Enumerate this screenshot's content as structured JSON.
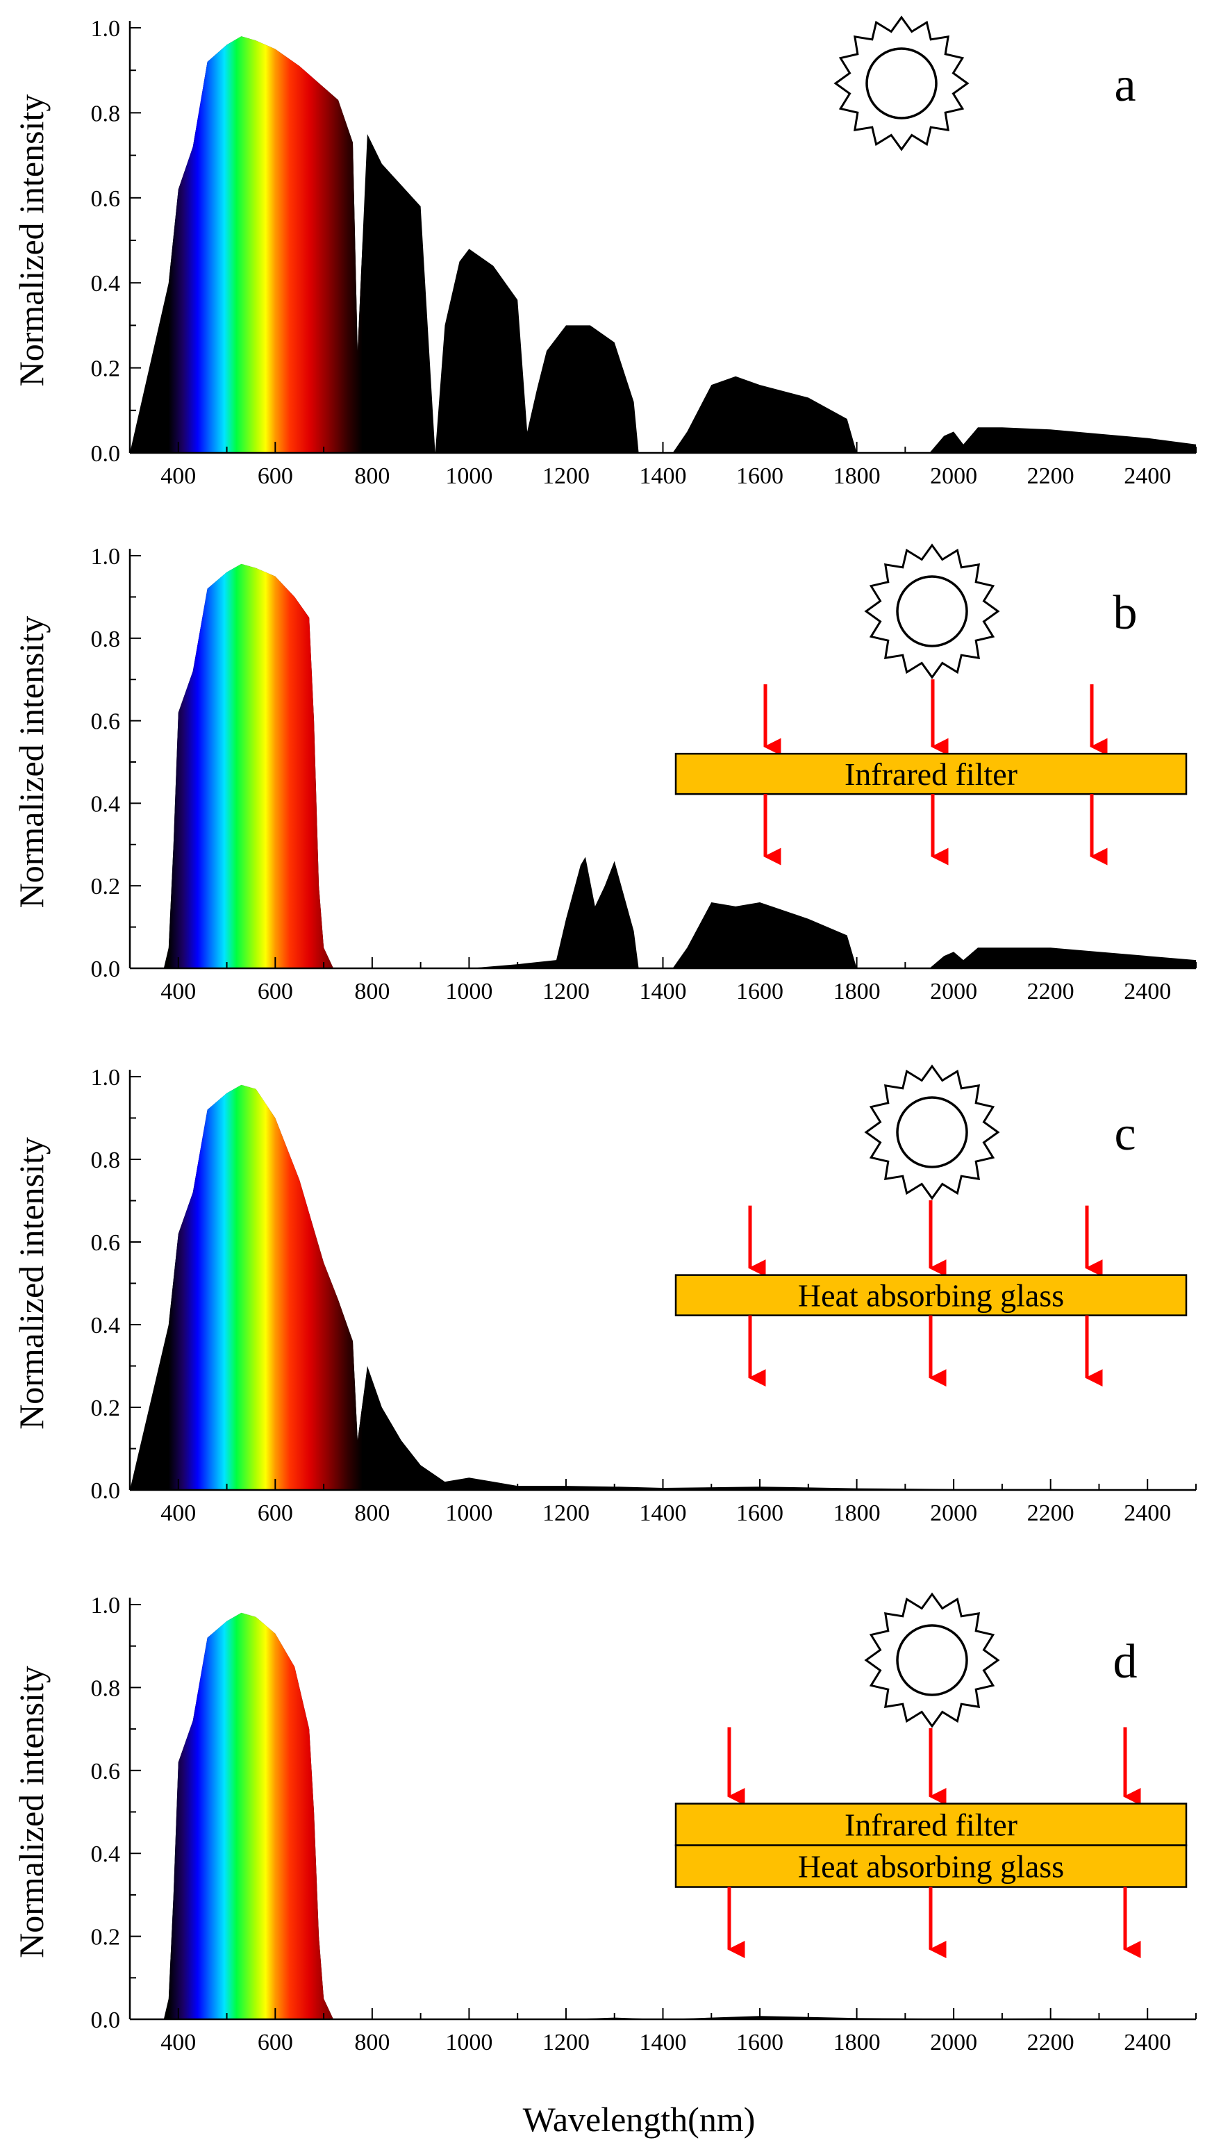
{
  "figure": {
    "xlabel": "Wavelength(nm)",
    "ylabel": "Normalized intensity",
    "x_ticks": [
      400,
      600,
      800,
      1000,
      1200,
      1400,
      1600,
      1800,
      2000,
      2200,
      2400
    ],
    "y_ticks": [
      "0.0",
      "0.2",
      "0.4",
      "0.6",
      "0.8",
      "1.0"
    ],
    "colors": {
      "arrow": "#ff0000",
      "filter_fill": "#ffc000",
      "spectrum_ir": "#000000"
    },
    "icons": {
      "sun": "sun-icon",
      "arrow": "down-arrow-icon"
    }
  },
  "chart_data": [
    {
      "type": "area",
      "panel": "a",
      "title": "",
      "xlabel": "Wavelength(nm)",
      "ylabel": "Normalized intensity",
      "xlim": [
        300,
        2500
      ],
      "ylim": [
        0,
        1.0
      ],
      "filters": [],
      "x": [
        300,
        330,
        360,
        380,
        400,
        430,
        460,
        500,
        530,
        560,
        600,
        650,
        700,
        730,
        760,
        770,
        790,
        820,
        860,
        900,
        930,
        950,
        980,
        1000,
        1050,
        1100,
        1120,
        1140,
        1160,
        1200,
        1250,
        1300,
        1340,
        1350,
        1420,
        1450,
        1500,
        1550,
        1600,
        1700,
        1780,
        1800,
        1950,
        1980,
        2000,
        2020,
        2050,
        2100,
        2200,
        2300,
        2400,
        2500
      ],
      "values": [
        0.0,
        0.15,
        0.3,
        0.4,
        0.62,
        0.72,
        0.92,
        0.96,
        0.98,
        0.97,
        0.95,
        0.91,
        0.86,
        0.83,
        0.73,
        0.24,
        0.75,
        0.68,
        0.63,
        0.58,
        0.0,
        0.3,
        0.45,
        0.48,
        0.44,
        0.36,
        0.05,
        0.15,
        0.24,
        0.3,
        0.3,
        0.26,
        0.12,
        0.0,
        0.0,
        0.05,
        0.16,
        0.18,
        0.16,
        0.13,
        0.08,
        0.0,
        0.0,
        0.04,
        0.05,
        0.02,
        0.06,
        0.06,
        0.055,
        0.045,
        0.035,
        0.02
      ]
    },
    {
      "type": "area",
      "panel": "b",
      "title": "",
      "xlabel": "Wavelength(nm)",
      "ylabel": "Normalized intensity",
      "xlim": [
        300,
        2500
      ],
      "ylim": [
        0,
        1.0
      ],
      "filters": [
        "Infrared filter"
      ],
      "x": [
        300,
        370,
        380,
        390,
        400,
        430,
        460,
        500,
        530,
        560,
        600,
        640,
        670,
        680,
        690,
        700,
        720,
        1000,
        1100,
        1180,
        1200,
        1230,
        1240,
        1260,
        1280,
        1300,
        1340,
        1350,
        1420,
        1450,
        1500,
        1550,
        1600,
        1700,
        1780,
        1800,
        1950,
        1980,
        2000,
        2020,
        2050,
        2100,
        2200,
        2300,
        2400,
        2500
      ],
      "values": [
        0.0,
        0.0,
        0.05,
        0.3,
        0.62,
        0.72,
        0.92,
        0.96,
        0.98,
        0.97,
        0.95,
        0.9,
        0.85,
        0.6,
        0.2,
        0.05,
        0.0,
        0.0,
        0.01,
        0.02,
        0.12,
        0.25,
        0.27,
        0.15,
        0.2,
        0.26,
        0.09,
        0.0,
        0.0,
        0.05,
        0.16,
        0.15,
        0.16,
        0.12,
        0.08,
        0.0,
        0.0,
        0.03,
        0.04,
        0.02,
        0.05,
        0.05,
        0.05,
        0.04,
        0.03,
        0.02
      ]
    },
    {
      "type": "area",
      "panel": "c",
      "title": "",
      "xlabel": "Wavelength(nm)",
      "ylabel": "Normalized intensity",
      "xlim": [
        300,
        2500
      ],
      "ylim": [
        0,
        1.0
      ],
      "filters": [
        "Heat absorbing glass"
      ],
      "x": [
        300,
        330,
        360,
        380,
        400,
        430,
        460,
        500,
        530,
        560,
        600,
        650,
        700,
        730,
        760,
        770,
        790,
        820,
        860,
        900,
        950,
        1000,
        1050,
        1100,
        1200,
        1300,
        1400,
        1600,
        1800,
        2000,
        2200,
        2500
      ],
      "values": [
        0.0,
        0.15,
        0.3,
        0.4,
        0.62,
        0.72,
        0.92,
        0.96,
        0.98,
        0.97,
        0.9,
        0.75,
        0.55,
        0.46,
        0.36,
        0.12,
        0.3,
        0.2,
        0.12,
        0.06,
        0.02,
        0.03,
        0.02,
        0.01,
        0.01,
        0.008,
        0.005,
        0.008,
        0.004,
        0.002,
        0.002,
        0.0
      ]
    },
    {
      "type": "area",
      "panel": "d",
      "title": "",
      "xlabel": "Wavelength(nm)",
      "ylabel": "Normalized intensity",
      "xlim": [
        300,
        2500
      ],
      "ylim": [
        0,
        1.0
      ],
      "filters": [
        "Infrared filter",
        "Heat absorbing glass"
      ],
      "x": [
        300,
        370,
        380,
        390,
        400,
        430,
        460,
        500,
        530,
        560,
        600,
        640,
        670,
        680,
        690,
        700,
        720,
        1200,
        1300,
        1400,
        1600,
        1800,
        2000,
        2200,
        2500
      ],
      "values": [
        0.0,
        0.0,
        0.05,
        0.3,
        0.62,
        0.72,
        0.92,
        0.96,
        0.98,
        0.97,
        0.93,
        0.85,
        0.7,
        0.5,
        0.2,
        0.05,
        0.0,
        0.0,
        0.004,
        0.0,
        0.008,
        0.003,
        0.001,
        0.002,
        0.0
      ]
    }
  ]
}
